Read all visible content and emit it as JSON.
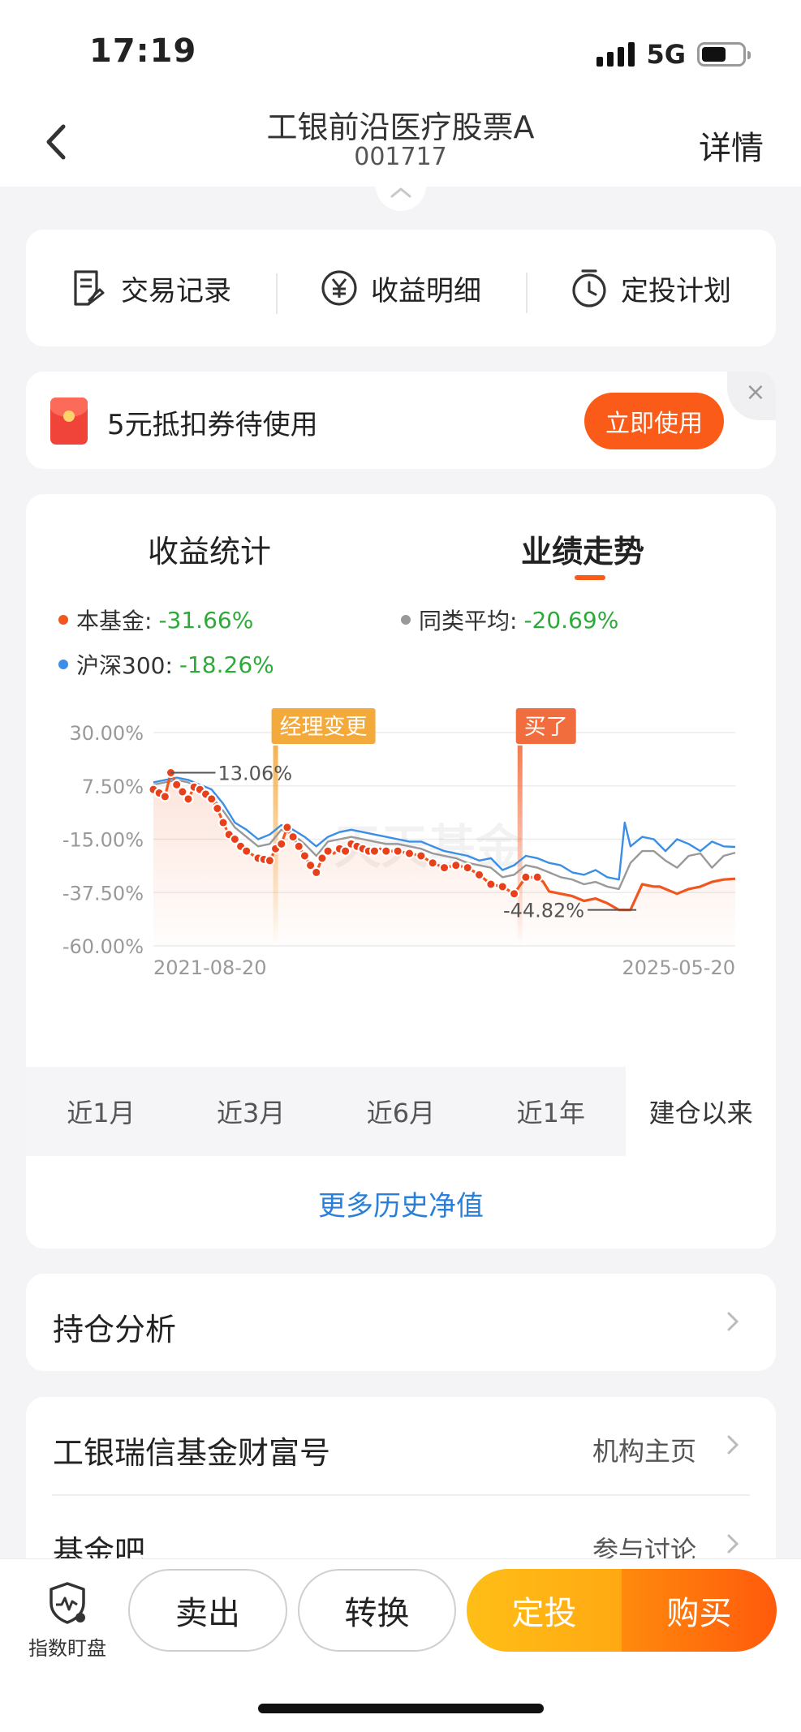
{
  "status_bar": {
    "time": "17:19",
    "network": "5G",
    "battery_level": 0.6
  },
  "header": {
    "title": "工银前沿医疗股票A",
    "code": "001717",
    "detail_label": "详情"
  },
  "quick_actions": [
    {
      "label": "交易记录",
      "icon": "document-list-icon"
    },
    {
      "label": "收益明细",
      "icon": "yen-circle-icon"
    },
    {
      "label": "定投计划",
      "icon": "timer-icon"
    }
  ],
  "coupon": {
    "text": "5元抵扣券待使用",
    "button": "立即使用",
    "close": "×"
  },
  "chart_panel": {
    "tabs": [
      "收益统计",
      "业绩走势"
    ],
    "active_tab": 1,
    "more_history": "更多历史净值",
    "periods": [
      "近1月",
      "近3月",
      "近6月",
      "近1年",
      "建仓以来"
    ],
    "active_period": 4
  },
  "chart_data": {
    "type": "line",
    "legend": [
      {
        "name": "本基金",
        "label": "本基金:",
        "value": "-31.66%",
        "color": "#f0561d"
      },
      {
        "name": "同类平均",
        "label": "同类平均:",
        "value": "-20.69%",
        "color": "#999999"
      },
      {
        "name": "沪深300",
        "label": "沪深300:",
        "value": "-18.26%",
        "color": "#3a8ee6"
      }
    ],
    "y_ticks": [
      "30.00%",
      "7.50%",
      "-15.00%",
      "-37.50%",
      "-60.00%"
    ],
    "ylim": [
      -60,
      30
    ],
    "x_labels": [
      "2021-08-20",
      "2025-05-20"
    ],
    "x_range": [
      0,
      100
    ],
    "grid": true,
    "series": [
      {
        "name": "本基金",
        "color": "#f0561d",
        "x": [
          0,
          2,
          3,
          4,
          5,
          6,
          7,
          8,
          9,
          10,
          11,
          12,
          13,
          14,
          15,
          16,
          18,
          20,
          21,
          22,
          23,
          24,
          25,
          26,
          27,
          28,
          29,
          30,
          31,
          32,
          33,
          34,
          35,
          36,
          37,
          38,
          39,
          40,
          42,
          44,
          46,
          48,
          50,
          52,
          54,
          56,
          58,
          60,
          62,
          64,
          66,
          67,
          68,
          70,
          72,
          74,
          76,
          78,
          80,
          82,
          84,
          86,
          87,
          88,
          89,
          90,
          92,
          94,
          96,
          98,
          100
        ],
        "y": [
          6,
          3,
          13.06,
          8,
          5,
          2,
          7,
          6,
          4,
          2,
          -2,
          -8,
          -13,
          -15,
          -18,
          -20,
          -23,
          -24,
          -19,
          -17,
          -10,
          -14,
          -18,
          -22,
          -26,
          -29,
          -23,
          -20,
          -21,
          -19,
          -20,
          -17,
          -18,
          -19,
          -20,
          -20,
          -19,
          -20,
          -20,
          -21,
          -22,
          -25,
          -27,
          -26,
          -27,
          -30,
          -34,
          -35,
          -38,
          -31,
          -31,
          -33,
          -37,
          -38,
          -39,
          -41,
          -40,
          -42,
          -44.82,
          -44.82,
          -34,
          -35,
          -35,
          -36,
          -37,
          -38,
          -36,
          -35,
          -33,
          -32,
          -31.66
        ]
      },
      {
        "name": "同类平均",
        "color": "#999999",
        "x": [
          0,
          4,
          6,
          8,
          10,
          12,
          14,
          16,
          18,
          20,
          22,
          24,
          26,
          28,
          30,
          32,
          34,
          36,
          38,
          40,
          42,
          44,
          46,
          48,
          50,
          52,
          54,
          56,
          58,
          60,
          62,
          64,
          66,
          68,
          70,
          72,
          74,
          76,
          78,
          80,
          82,
          84,
          86,
          88,
          90,
          92,
          94,
          96,
          98,
          100
        ],
        "y": [
          8,
          10,
          9,
          6,
          3,
          -3,
          -10,
          -14,
          -18,
          -17,
          -11,
          -13,
          -17,
          -22,
          -16,
          -15,
          -14,
          -15,
          -16,
          -17,
          -17,
          -18,
          -19,
          -21,
          -22,
          -23,
          -25,
          -26,
          -27,
          -31,
          -30,
          -26,
          -27,
          -29,
          -31,
          -32,
          -34,
          -33,
          -35,
          -36,
          -25,
          -20,
          -20,
          -24,
          -27,
          -22,
          -21,
          -27,
          -22,
          -20.69
        ]
      },
      {
        "name": "沪深300",
        "color": "#3a8ee6",
        "x": [
          0,
          4,
          6,
          8,
          10,
          12,
          14,
          16,
          18,
          20,
          22,
          24,
          26,
          28,
          30,
          32,
          34,
          36,
          38,
          40,
          42,
          44,
          46,
          48,
          50,
          52,
          54,
          56,
          58,
          60,
          62,
          64,
          66,
          68,
          70,
          72,
          74,
          76,
          78,
          80,
          81,
          82,
          84,
          86,
          88,
          90,
          92,
          94,
          96,
          98,
          100
        ],
        "y": [
          9,
          11,
          10,
          8,
          6,
          0,
          -8,
          -11,
          -15,
          -13,
          -9,
          -11,
          -14,
          -18,
          -14,
          -12,
          -11,
          -12,
          -13,
          -14,
          -15,
          -16,
          -16,
          -18,
          -20,
          -21,
          -22,
          -24,
          -23,
          -28,
          -26,
          -22,
          -23,
          -25,
          -26,
          -29,
          -30,
          -28,
          -31,
          -32,
          -8,
          -18,
          -14,
          -15,
          -20,
          -15,
          -17,
          -20,
          -16,
          -18,
          -18.26
        ]
      }
    ],
    "fund_markers_x": [
      0,
      1,
      2,
      3,
      4,
      5,
      6,
      7,
      8,
      9,
      10,
      11,
      12,
      13,
      14,
      15,
      16,
      18,
      19,
      20,
      21,
      22,
      23,
      24,
      25,
      26,
      27,
      28,
      29,
      30,
      32,
      33,
      34,
      35,
      36,
      37,
      38,
      40,
      42,
      44,
      46,
      48,
      50,
      52,
      54,
      56,
      58,
      60,
      62,
      64,
      66
    ],
    "annotations": [
      {
        "text": "13.06%",
        "x": 3,
        "y": 13.06,
        "side": "right"
      },
      {
        "text": "-44.82%",
        "x": 83,
        "y": -44.82,
        "side": "left"
      }
    ],
    "events": [
      {
        "text": "经理变更",
        "x": 21,
        "color": "#f4a93b"
      },
      {
        "text": "买了",
        "x": 63,
        "color": "#f26d3d"
      }
    ],
    "watermark": "天天基金"
  },
  "lists": {
    "holdings": {
      "label": "持仓分析"
    },
    "company": {
      "label": "工银瑞信基金财富号",
      "right": "机构主页"
    },
    "forum": {
      "label": "基金吧",
      "right": "参与讨论"
    }
  },
  "bottom_bar": {
    "index_watch": "指数盯盘",
    "sell": "卖出",
    "convert": "转换",
    "fixed_invest": "定投",
    "buy": "购买"
  }
}
